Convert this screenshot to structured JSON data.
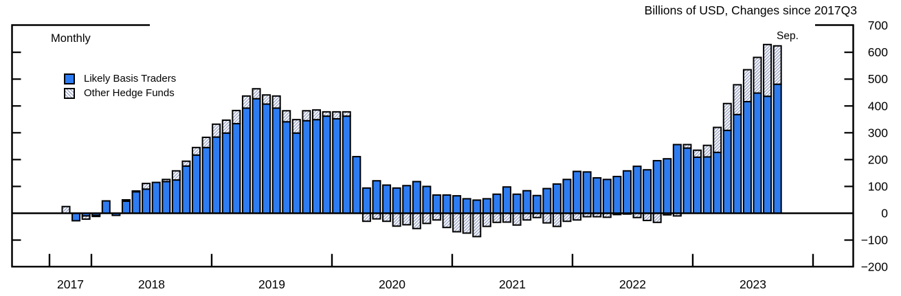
{
  "title": "Billions of USD, Changes since 2017Q3",
  "plot_label": "Monthly",
  "last_bar_label": "Sep.",
  "legend": [
    {
      "label": "Likely Basis Traders",
      "swatch": "solid-blue-square"
    },
    {
      "label": "Other Hedge Funds",
      "swatch": "hatched-square"
    }
  ],
  "colors": {
    "basis_blue": "#2E7CF2",
    "hatch_stroke": "#9EA7C6",
    "hatch_background": "#ffffff",
    "outline": "#000000",
    "axis": "#000000"
  },
  "chart_data": {
    "type": "bar",
    "stacked": true,
    "orientation": "vertical",
    "unit": "Billions of USD",
    "title": "Billions of USD, Changes since 2017Q3",
    "frequency_note": "Monthly",
    "annotation_last_bar": "Sep.",
    "ylim": [
      -200,
      700
    ],
    "grid": false,
    "legend_position": "top-left-inside",
    "y_ticks": [
      {
        "value": 700,
        "label": "700"
      },
      {
        "value": 600,
        "label": "600"
      },
      {
        "value": 500,
        "label": "500"
      },
      {
        "value": 400,
        "label": "400"
      },
      {
        "value": 300,
        "label": "300"
      },
      {
        "value": 200,
        "label": "200"
      },
      {
        "value": 100,
        "label": "100"
      },
      {
        "value": 0,
        "label": "0"
      },
      {
        "value": -100,
        "label": "−100"
      },
      {
        "value": -200,
        "label": "−200"
      }
    ],
    "x_year_labels": [
      "2017",
      "2018",
      "2019",
      "2020",
      "2021",
      "2022",
      "2023"
    ],
    "months": [
      "2017-10",
      "2017-11",
      "2017-12",
      "2018-01",
      "2018-02",
      "2018-03",
      "2018-04",
      "2018-05",
      "2018-06",
      "2018-07",
      "2018-08",
      "2018-09",
      "2018-10",
      "2018-11",
      "2018-12",
      "2019-01",
      "2019-02",
      "2019-03",
      "2019-04",
      "2019-05",
      "2019-06",
      "2019-07",
      "2019-08",
      "2019-09",
      "2019-10",
      "2019-11",
      "2019-12",
      "2020-01",
      "2020-02",
      "2020-03",
      "2020-04",
      "2020-05",
      "2020-06",
      "2020-07",
      "2020-08",
      "2020-09",
      "2020-10",
      "2020-11",
      "2020-12",
      "2021-01",
      "2021-02",
      "2021-03",
      "2021-04",
      "2021-05",
      "2021-06",
      "2021-07",
      "2021-08",
      "2021-09",
      "2021-10",
      "2021-11",
      "2021-12",
      "2022-01",
      "2022-02",
      "2022-03",
      "2022-04",
      "2022-05",
      "2022-06",
      "2022-07",
      "2022-08",
      "2022-09",
      "2022-10",
      "2022-11",
      "2022-12",
      "2023-01",
      "2023-02",
      "2023-03",
      "2023-04",
      "2023-05",
      "2023-06",
      "2023-07",
      "2023-08",
      "2023-09"
    ],
    "series": [
      {
        "name": "Likely Basis Traders",
        "style": "solid-blue",
        "values": [
          0,
          -28,
          -10,
          -8,
          46,
          -8,
          45,
          80,
          90,
          115,
          118,
          124,
          176,
          217,
          245,
          284,
          299,
          334,
          392,
          427,
          407,
          392,
          341,
          299,
          345,
          349,
          362,
          352,
          362,
          211,
          94,
          121,
          105,
          94,
          103,
          118,
          100,
          68,
          68,
          65,
          54,
          49,
          54,
          71,
          98,
          71,
          84,
          66,
          92,
          109,
          126,
          156,
          154,
          132,
          126,
          137,
          158,
          175,
          162,
          196,
          203,
          256,
          243,
          209,
          210,
          227,
          309,
          368,
          416,
          448,
          436,
          481
        ]
      },
      {
        "name": "Other Hedge Funds",
        "style": "hatched",
        "values": [
          25,
          0,
          -12,
          -4,
          0,
          0,
          5,
          3,
          21,
          0,
          8,
          34,
          18,
          28,
          38,
          48,
          48,
          49,
          45,
          37,
          34,
          45,
          41,
          50,
          37,
          36,
          16,
          26,
          16,
          0,
          -30,
          -21,
          -30,
          -48,
          -43,
          -57,
          -38,
          -25,
          -53,
          -69,
          -74,
          -87,
          -49,
          -34,
          -33,
          -44,
          -25,
          -16,
          -36,
          -49,
          -30,
          -25,
          -13,
          -13,
          -15,
          -5,
          -3,
          -16,
          -27,
          -34,
          -6,
          -10,
          13,
          26,
          43,
          93,
          100,
          111,
          119,
          133,
          193,
          143
        ]
      }
    ]
  }
}
